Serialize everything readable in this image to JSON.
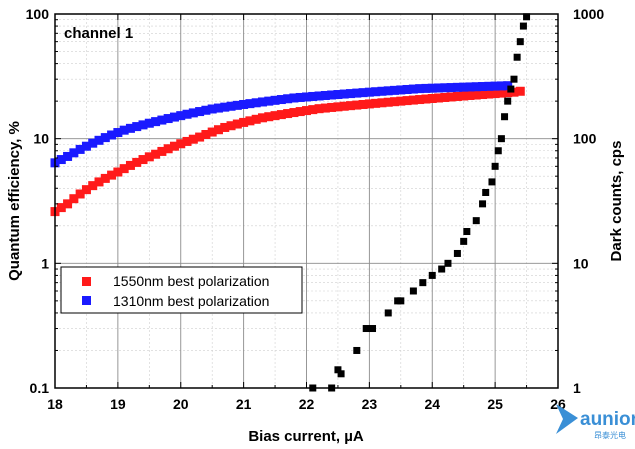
{
  "chart_data": {
    "type": "scatter",
    "panel_label": "channel 1",
    "xlabel": "Bias current, µA",
    "ylabel_left": "Quantum efficiency, %",
    "ylabel_right": "Dark counts, cps",
    "xlim": [
      18,
      26
    ],
    "ylim_left": [
      0.1,
      100
    ],
    "ylim_right": [
      1,
      1000
    ],
    "yscale": "log",
    "grid": true,
    "legend_position": "lower-left",
    "x_ticks": [
      "18",
      "19",
      "20",
      "21",
      "22",
      "23",
      "24",
      "25",
      "26"
    ],
    "y_ticks_left": [
      "0.1",
      "1",
      "10",
      "100"
    ],
    "y_ticks_right": [
      "1",
      "10",
      "100",
      "1000"
    ],
    "series": [
      {
        "name": "1550nm best polarization",
        "axis": "left",
        "color": "#ff1a1a",
        "x": [
          18.0,
          18.1,
          18.2,
          18.3,
          18.4,
          18.5,
          18.6,
          18.7,
          18.8,
          18.9,
          19.0,
          19.1,
          19.2,
          19.3,
          19.4,
          19.5,
          19.6,
          19.7,
          19.8,
          19.9,
          20.0,
          20.1,
          20.2,
          20.3,
          20.4,
          20.5,
          20.6,
          20.7,
          20.8,
          20.9,
          21.0,
          21.1,
          21.2,
          21.3,
          21.4,
          21.5,
          21.6,
          21.7,
          21.8,
          21.9,
          22.0,
          22.1,
          22.2,
          22.3,
          22.4,
          22.5,
          22.6,
          22.7,
          22.8,
          22.9,
          23.0,
          23.1,
          23.2,
          23.3,
          23.4,
          23.5,
          23.6,
          23.7,
          23.8,
          23.9,
          24.0,
          24.1,
          24.2,
          24.3,
          24.4,
          24.5,
          24.6,
          24.7,
          24.8,
          24.9,
          25.0,
          25.1,
          25.2,
          25.3,
          25.4
        ],
        "y": [
          2.6,
          2.8,
          3.0,
          3.3,
          3.6,
          3.9,
          4.2,
          4.5,
          4.8,
          5.1,
          5.4,
          5.75,
          6.1,
          6.45,
          6.8,
          7.15,
          7.5,
          7.9,
          8.3,
          8.7,
          9.1,
          9.5,
          9.9,
          10.3,
          10.8,
          11.3,
          11.8,
          12.3,
          12.7,
          13.1,
          13.5,
          13.9,
          14.3,
          14.7,
          15.0,
          15.3,
          15.6,
          15.9,
          16.2,
          16.5,
          16.8,
          17.1,
          17.4,
          17.6,
          17.8,
          18.0,
          18.2,
          18.4,
          18.6,
          18.8,
          19.0,
          19.2,
          19.4,
          19.6,
          19.8,
          20.0,
          20.2,
          20.4,
          20.6,
          20.8,
          21.0,
          21.2,
          21.4,
          21.6,
          21.8,
          22.0,
          22.2,
          22.4,
          22.6,
          22.8,
          23.0,
          23.2,
          23.4,
          23.6,
          24.0
        ]
      },
      {
        "name": "1310nm best polarization",
        "axis": "left",
        "color": "#1a1aff",
        "x": [
          18.0,
          18.1,
          18.2,
          18.3,
          18.4,
          18.5,
          18.6,
          18.7,
          18.8,
          18.9,
          19.0,
          19.1,
          19.2,
          19.3,
          19.4,
          19.5,
          19.6,
          19.7,
          19.8,
          19.9,
          20.0,
          20.1,
          20.2,
          20.3,
          20.4,
          20.5,
          20.6,
          20.7,
          20.8,
          20.9,
          21.0,
          21.1,
          21.2,
          21.3,
          21.4,
          21.5,
          21.6,
          21.7,
          21.8,
          21.9,
          22.0,
          22.1,
          22.2,
          22.3,
          22.4,
          22.5,
          22.6,
          22.7,
          22.8,
          22.9,
          23.0,
          23.1,
          23.2,
          23.3,
          23.4,
          23.5,
          23.6,
          23.7,
          23.8,
          23.9,
          24.0,
          24.1,
          24.2,
          24.3,
          24.4,
          24.5,
          24.6,
          24.7,
          24.8,
          24.9,
          25.0,
          25.1,
          25.2
        ],
        "y": [
          6.4,
          6.8,
          7.2,
          7.7,
          8.2,
          8.7,
          9.2,
          9.7,
          10.2,
          10.7,
          11.2,
          11.7,
          12.1,
          12.5,
          12.9,
          13.3,
          13.7,
          14.1,
          14.5,
          14.9,
          15.3,
          15.7,
          16.1,
          16.5,
          16.9,
          17.3,
          17.6,
          17.9,
          18.2,
          18.5,
          18.8,
          19.1,
          19.4,
          19.7,
          20.0,
          20.3,
          20.6,
          20.9,
          21.2,
          21.4,
          21.6,
          21.8,
          22.0,
          22.2,
          22.4,
          22.6,
          22.8,
          23.0,
          23.2,
          23.4,
          23.6,
          23.8,
          24.0,
          24.2,
          24.4,
          24.6,
          24.8,
          25.0,
          25.2,
          25.3,
          25.4,
          25.5,
          25.6,
          25.7,
          25.8,
          25.9,
          26.0,
          26.1,
          26.2,
          26.3,
          26.4,
          26.5,
          26.6
        ]
      },
      {
        "name": "",
        "axis": "right",
        "color": "#000000",
        "x": [
          22.1,
          22.4,
          22.5,
          22.55,
          22.8,
          22.95,
          23.05,
          23.3,
          23.45,
          23.5,
          23.7,
          23.85,
          24.0,
          24.15,
          24.25,
          24.4,
          24.5,
          24.55,
          24.7,
          24.8,
          24.85,
          24.95,
          25.0,
          25.05,
          25.1,
          25.15,
          25.2,
          25.25,
          25.3,
          25.35,
          25.4,
          25.45,
          25.5
        ],
        "y": [
          1.0,
          1.0,
          1.4,
          1.3,
          2.0,
          3.0,
          3.0,
          4.0,
          5.0,
          5.0,
          6.0,
          7.0,
          8.0,
          9.0,
          10.0,
          12.0,
          15.0,
          18.0,
          22.0,
          30.0,
          37.0,
          45.0,
          60.0,
          80.0,
          100.0,
          150.0,
          200.0,
          250.0,
          300.0,
          450.0,
          600.0,
          800.0,
          950.0
        ]
      }
    ]
  },
  "branding": {
    "name": "aunion",
    "subtitle": "昂泰光电",
    "color": "#3a8fd6"
  }
}
